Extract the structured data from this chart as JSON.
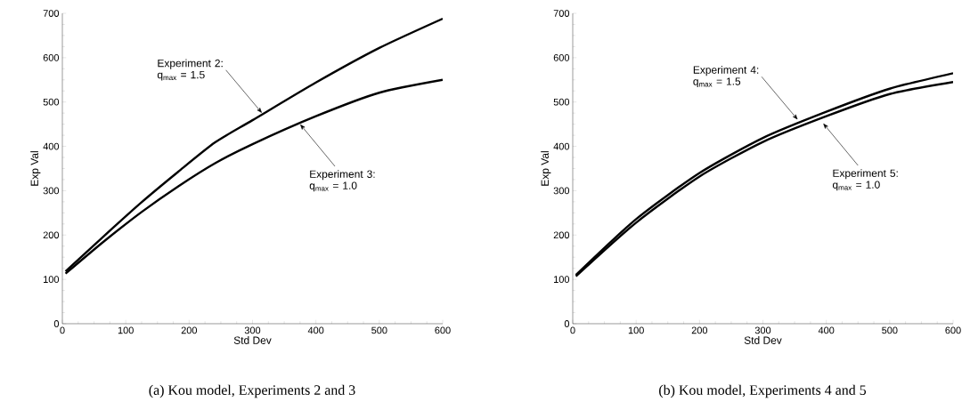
{
  "chart_data": [
    {
      "type": "line",
      "xlabel": "Std Dev",
      "ylabel": "Exp Val",
      "xlim": [
        0,
        600
      ],
      "ylim": [
        0,
        700
      ],
      "xticks": [
        0,
        100,
        200,
        300,
        400,
        500,
        600
      ],
      "yticks": [
        0,
        100,
        200,
        300,
        400,
        500,
        600,
        700
      ],
      "line_style": "solid",
      "marker": "none",
      "x": [
        5,
        65,
        125,
        183,
        241,
        300,
        400,
        500,
        600
      ],
      "series": [
        {
          "color": "#000000",
          "values": [
            118,
            197,
            274,
            343,
            409,
            459,
            544,
            622,
            688
          ]
        },
        {
          "color": "#000000",
          "values": [
            113,
            185,
            252,
            310,
            362,
            405,
            468,
            521,
            550
          ]
        }
      ],
      "annotations": [
        {
          "text": "Experiment 2: q$_{max}$ = 1.5",
          "x": 315,
          "y": 475
        },
        {
          "text": "Experiment 3: q$_{max}$ = 1.0",
          "x": 375,
          "y": 450
        },
        "(a) Kou model, Experiments 2 and 3"
      ]
    },
    {
      "type": "line",
      "xlabel": "Std Dev",
      "ylabel": "Exp Val",
      "xlim": [
        0,
        600
      ],
      "ylim": [
        0,
        700
      ],
      "xticks": [
        0,
        100,
        200,
        300,
        400,
        500,
        600
      ],
      "yticks": [
        0,
        100,
        200,
        300,
        400,
        500,
        600,
        700
      ],
      "line_style": "solid",
      "marker": "none",
      "x": [
        5,
        100,
        200,
        300,
        400,
        500,
        600
      ],
      "series": [
        {
          "color": "#000000",
          "values": [
            110,
            236,
            340,
            419,
            478,
            530,
            565
          ]
        },
        {
          "color": "#000000",
          "values": [
            107,
            228,
            332,
            410,
            468,
            518,
            545
          ]
        }
      ],
      "annotations": [
        {
          "text": "Experiment 4: q$_{max}$ = 1.5",
          "x": 355,
          "y": 460
        },
        {
          "text": "Experiment 5: q$_{max}$ = 1.0",
          "x": 395,
          "y": 452
        },
        "(b) Kou model, Experiments 4 and 5"
      ]
    }
  ]
}
